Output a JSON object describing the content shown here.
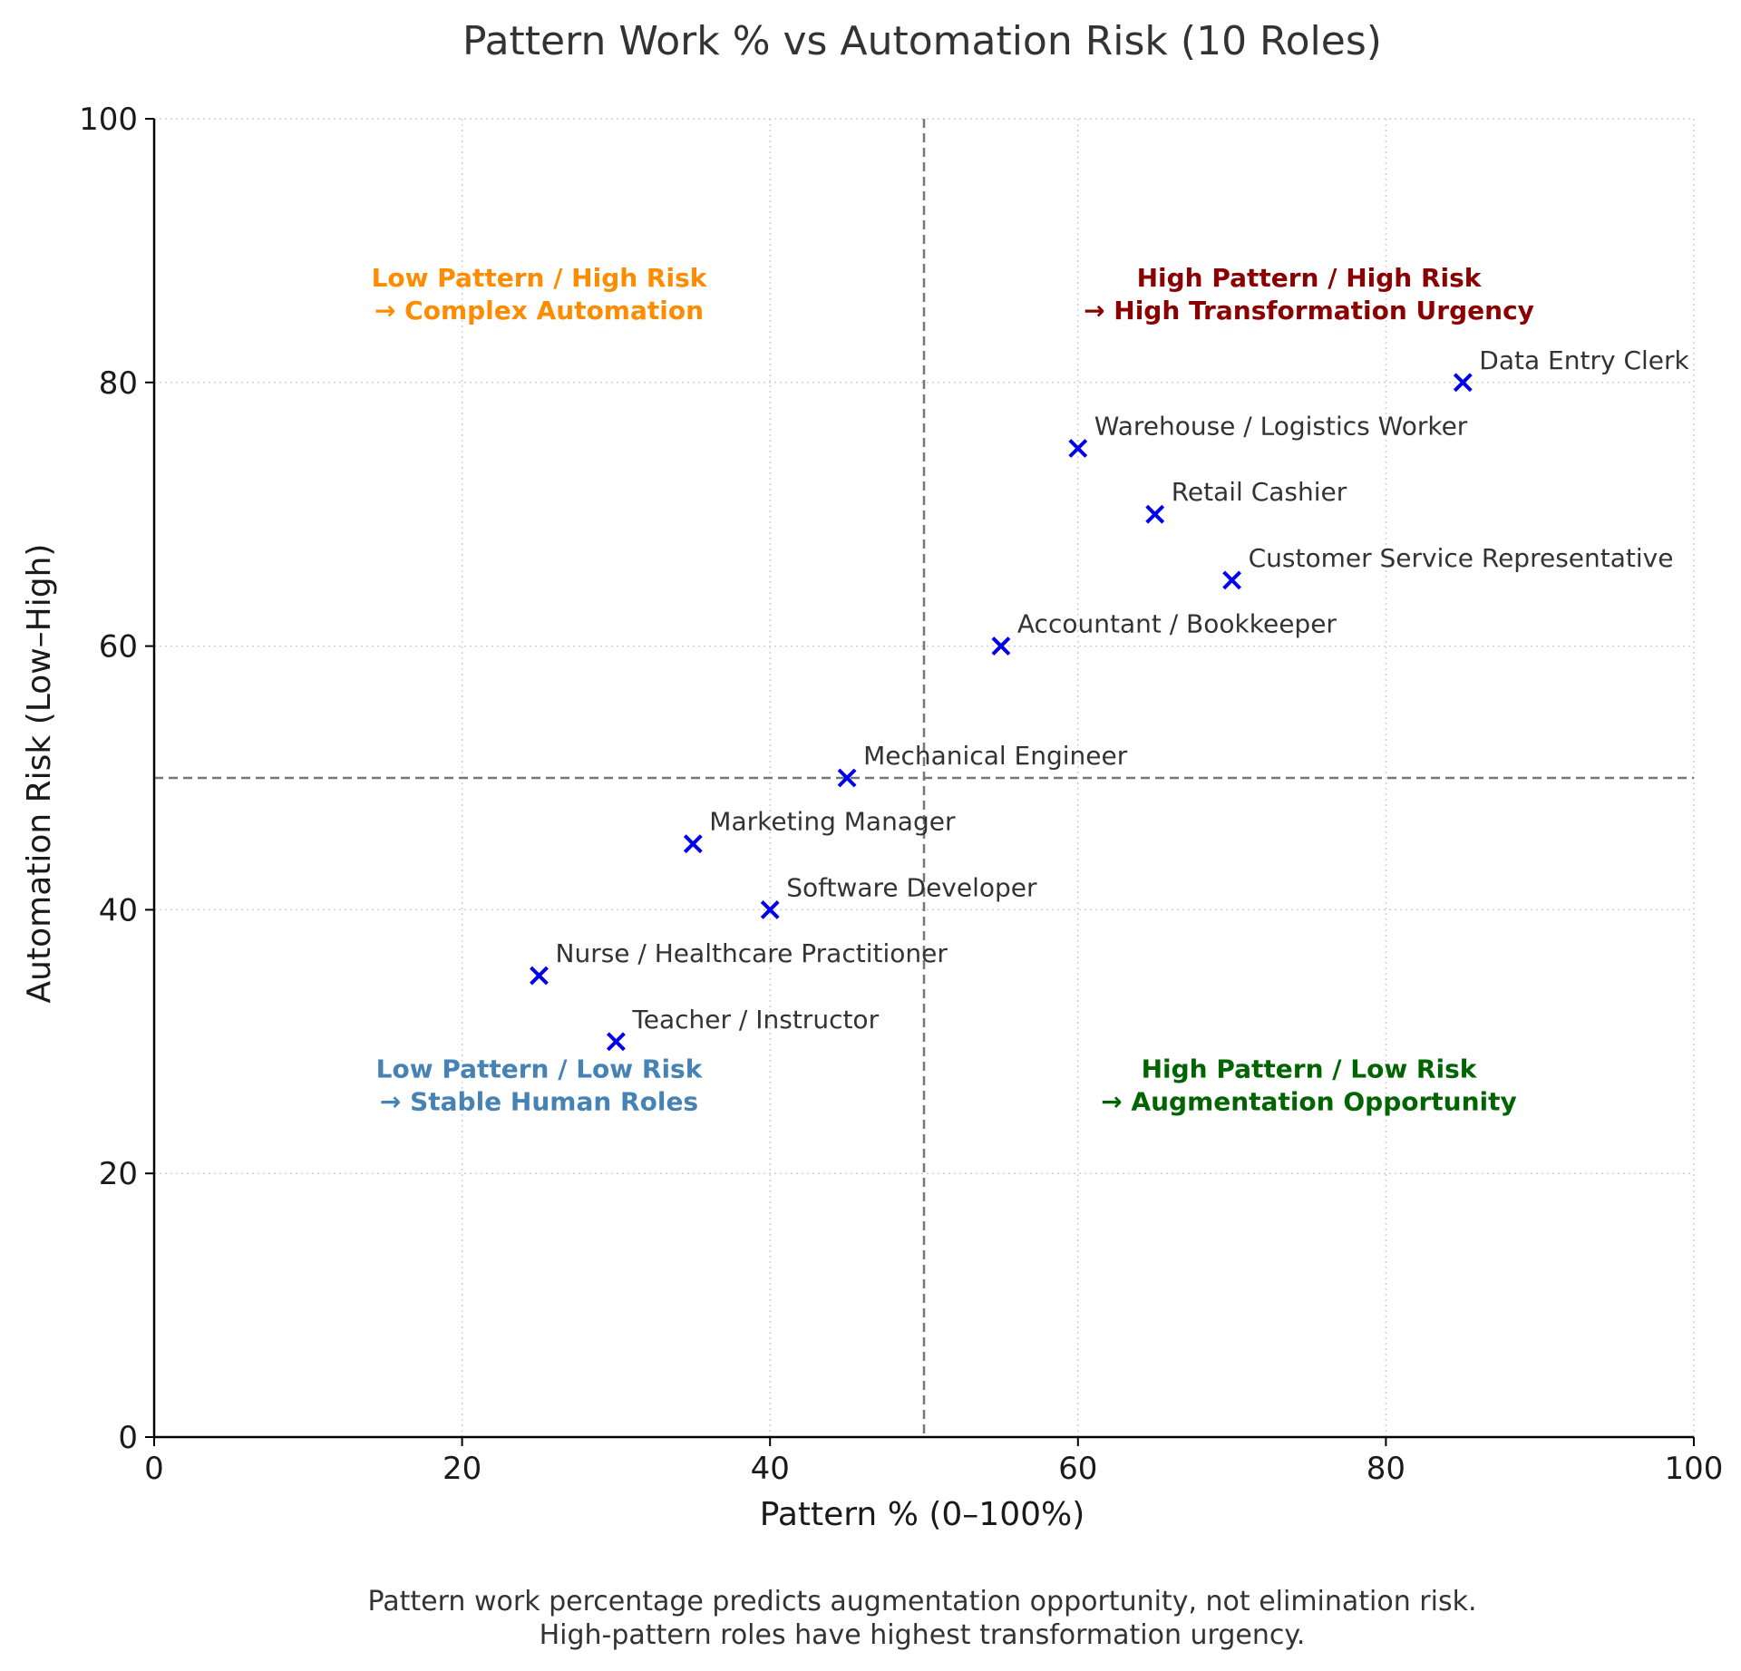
{
  "chart_data": {
    "type": "scatter",
    "title": "Pattern Work % vs Automation Risk (10 Roles)",
    "xlabel": "Pattern % (0–100%)",
    "ylabel": "Automation Risk (Low–High)",
    "xlim": [
      0,
      100
    ],
    "ylim": [
      0,
      100
    ],
    "xticks": [
      0,
      20,
      40,
      60,
      80,
      100
    ],
    "yticks": [
      0,
      20,
      40,
      60,
      80,
      100
    ],
    "grid": true,
    "marker": "x",
    "marker_color": "#0000ee",
    "reference_lines": {
      "vertical_x": 50,
      "horizontal_y": 50,
      "color": "#777777",
      "style": "dashed"
    },
    "points": [
      {
        "label": "Data Entry Clerk",
        "x": 85,
        "y": 80
      },
      {
        "label": "Warehouse / Logistics Worker",
        "x": 60,
        "y": 75
      },
      {
        "label": "Retail Cashier",
        "x": 65,
        "y": 70
      },
      {
        "label": "Customer Service Representative",
        "x": 70,
        "y": 65
      },
      {
        "label": "Accountant / Bookkeeper",
        "x": 55,
        "y": 60
      },
      {
        "label": "Mechanical Engineer",
        "x": 45,
        "y": 50
      },
      {
        "label": "Marketing Manager",
        "x": 35,
        "y": 45
      },
      {
        "label": "Software Developer",
        "x": 40,
        "y": 40
      },
      {
        "label": "Nurse / Healthcare Practitioner",
        "x": 25,
        "y": 35
      },
      {
        "label": "Teacher / Instructor",
        "x": 30,
        "y": 30
      }
    ],
    "quadrant_annotations": [
      {
        "lines": [
          "Low Pattern / High Risk",
          "→ Complex Automation"
        ],
        "x": 25,
        "y": 87,
        "color": "#ff8c00"
      },
      {
        "lines": [
          "High Pattern / High Risk",
          "→ High Transformation Urgency"
        ],
        "x": 75,
        "y": 87,
        "color": "#8b0000"
      },
      {
        "lines": [
          "Low Pattern / Low Risk",
          "→ Stable Human Roles"
        ],
        "x": 25,
        "y": 27,
        "color": "#4682b4"
      },
      {
        "lines": [
          "High Pattern / Low Risk",
          "→ Augmentation Opportunity"
        ],
        "x": 75,
        "y": 27,
        "color": "#006400"
      }
    ],
    "caption": [
      "Pattern work percentage predicts augmentation opportunity, not elimination risk.",
      "High-pattern roles have highest transformation urgency."
    ]
  }
}
